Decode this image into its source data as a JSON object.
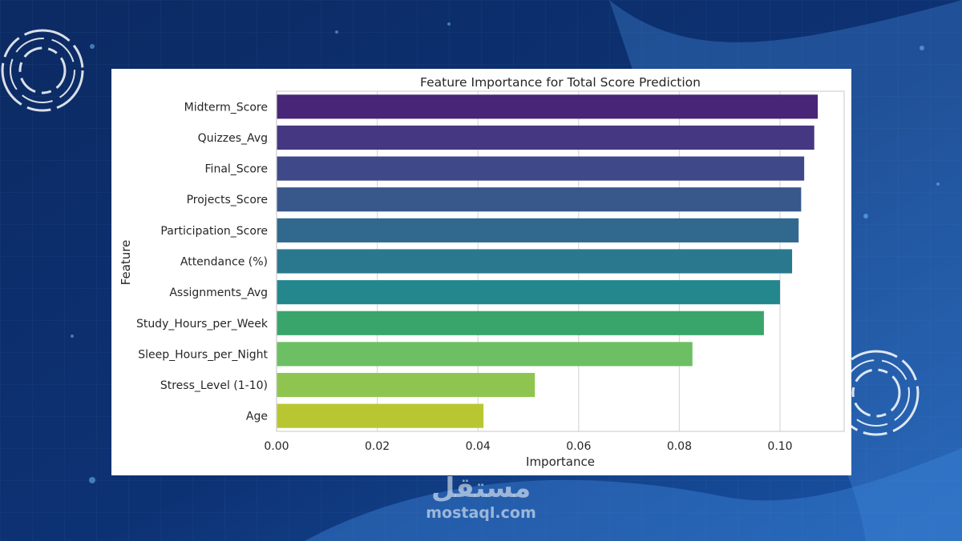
{
  "colors": {
    "background_dark": "#0b2a5e",
    "background_light": "#2f74c9",
    "card": "#ffffff",
    "grid": "#d9d9d9",
    "axis_text": "#262626"
  },
  "watermark": {
    "arabic": "مستقل",
    "latin": "mostaql.com"
  },
  "chart_data": {
    "type": "bar",
    "orientation": "horizontal",
    "title": "Feature Importance for Total Score Prediction",
    "xlabel": "Importance",
    "ylabel": "Feature",
    "categories": [
      "Midterm_Score",
      "Quizzes_Avg",
      "Final_Score",
      "Projects_Score",
      "Participation_Score",
      "Attendance (%)",
      "Assignments_Avg",
      "Study_Hours_per_Week",
      "Sleep_Hours_per_Night",
      "Stress_Level (1-10)",
      "Age"
    ],
    "values": [
      0.1075,
      0.1068,
      0.1048,
      0.1042,
      0.1037,
      0.1024,
      0.1,
      0.0968,
      0.0826,
      0.0513,
      0.0411
    ],
    "bar_colors": [
      "#482576",
      "#453781",
      "#3f4889",
      "#38588c",
      "#31688e",
      "#2a788e",
      "#24878e",
      "#39a56b",
      "#6cbf62",
      "#8ec550",
      "#b8c731"
    ],
    "xlim": [
      0,
      0.112
    ],
    "xticks": [
      0.0,
      0.02,
      0.04,
      0.06,
      0.08,
      0.1
    ],
    "xtick_labels": [
      "0.00",
      "0.02",
      "0.04",
      "0.06",
      "0.08",
      "0.10"
    ],
    "grid": true,
    "legend": "none"
  }
}
